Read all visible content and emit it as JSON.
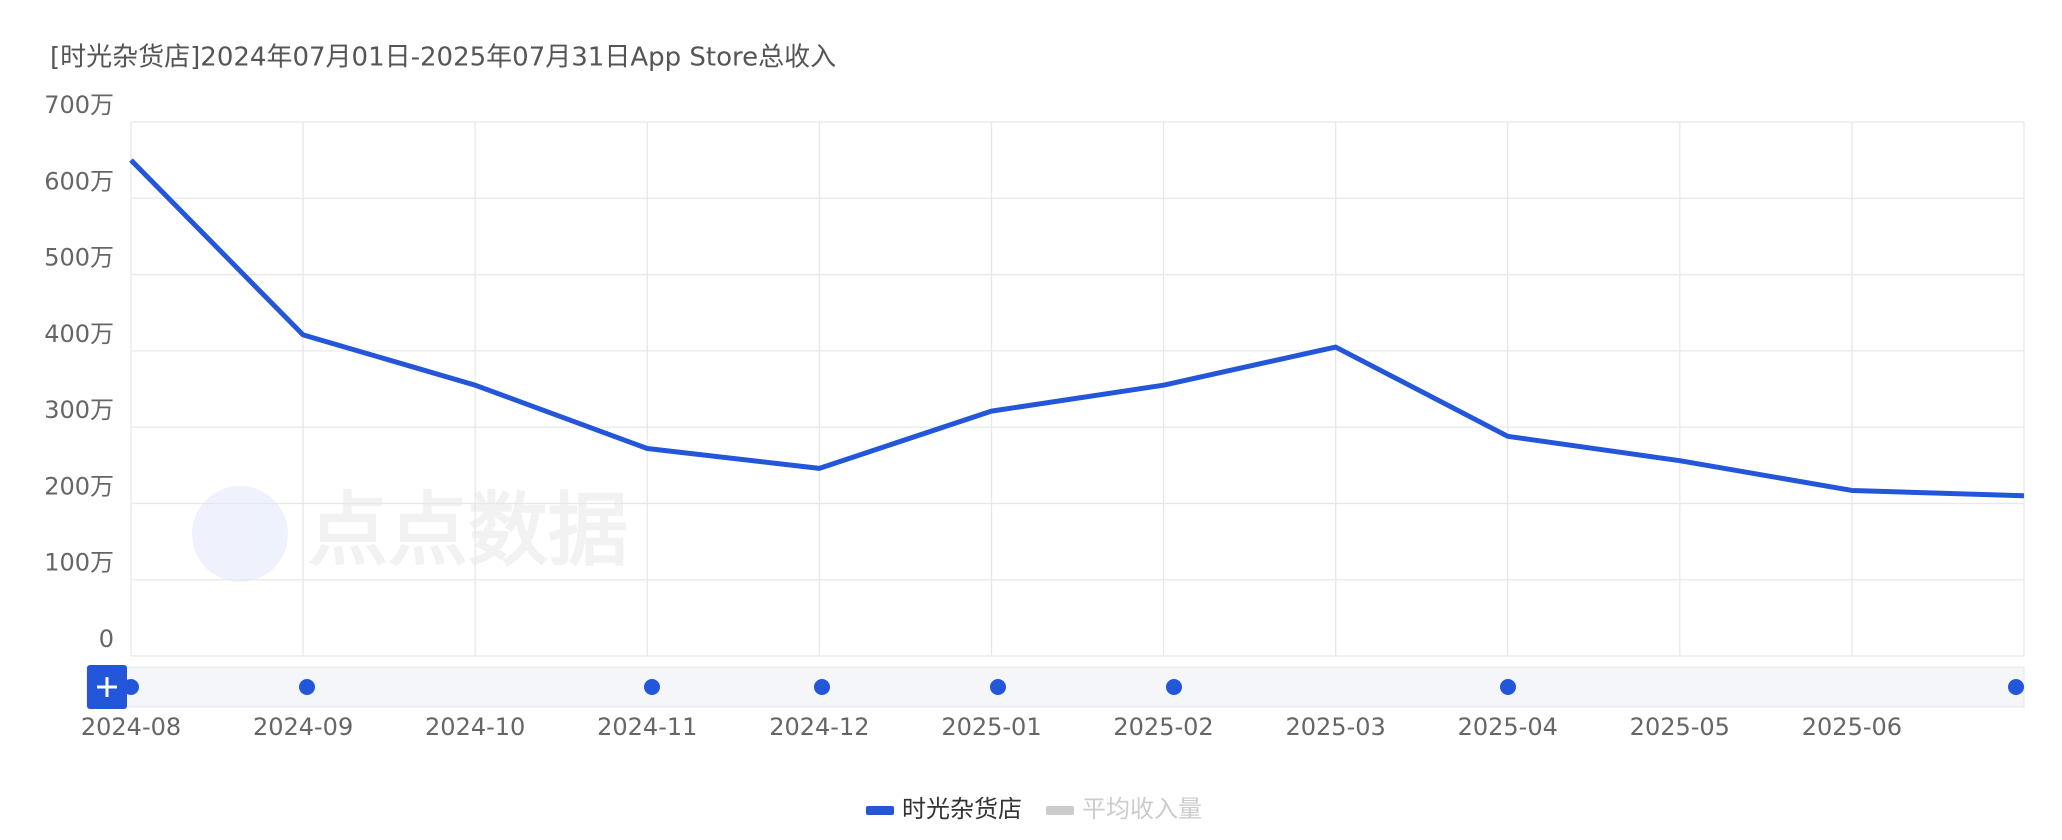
{
  "chart_data": {
    "type": "line",
    "title": "[时光杂货店]2024年07月01日-2025年07月31日App Store总收入",
    "watermark": "点点数据",
    "categories": [
      "2024-08",
      "2024-09",
      "2024-10",
      "2024-11",
      "2024-12",
      "2025-01",
      "2025-02",
      "2025-03",
      "2025-04",
      "2025-05",
      "2025-06",
      null
    ],
    "series": [
      {
        "name": "时光杂货店",
        "color": "#2356d9",
        "values": [
          650,
          421,
          355,
          272,
          246,
          321,
          355,
          405,
          288,
          256,
          217,
          210
        ]
      },
      {
        "name": "平均收入量",
        "color": "#cccccc",
        "hidden": true
      }
    ],
    "ylim": [
      0,
      700
    ],
    "yticks": [
      0,
      {
        "value": 100,
        "label": "100万"
      },
      {
        "value": 200,
        "label": "200万"
      },
      {
        "value": 300,
        "label": "300万"
      },
      {
        "value": 400,
        "label": "400万"
      },
      {
        "value": 500,
        "label": "500万"
      },
      {
        "value": 600,
        "label": "600万"
      },
      {
        "value": 700,
        "label": "700万"
      }
    ],
    "grid": true
  }
}
